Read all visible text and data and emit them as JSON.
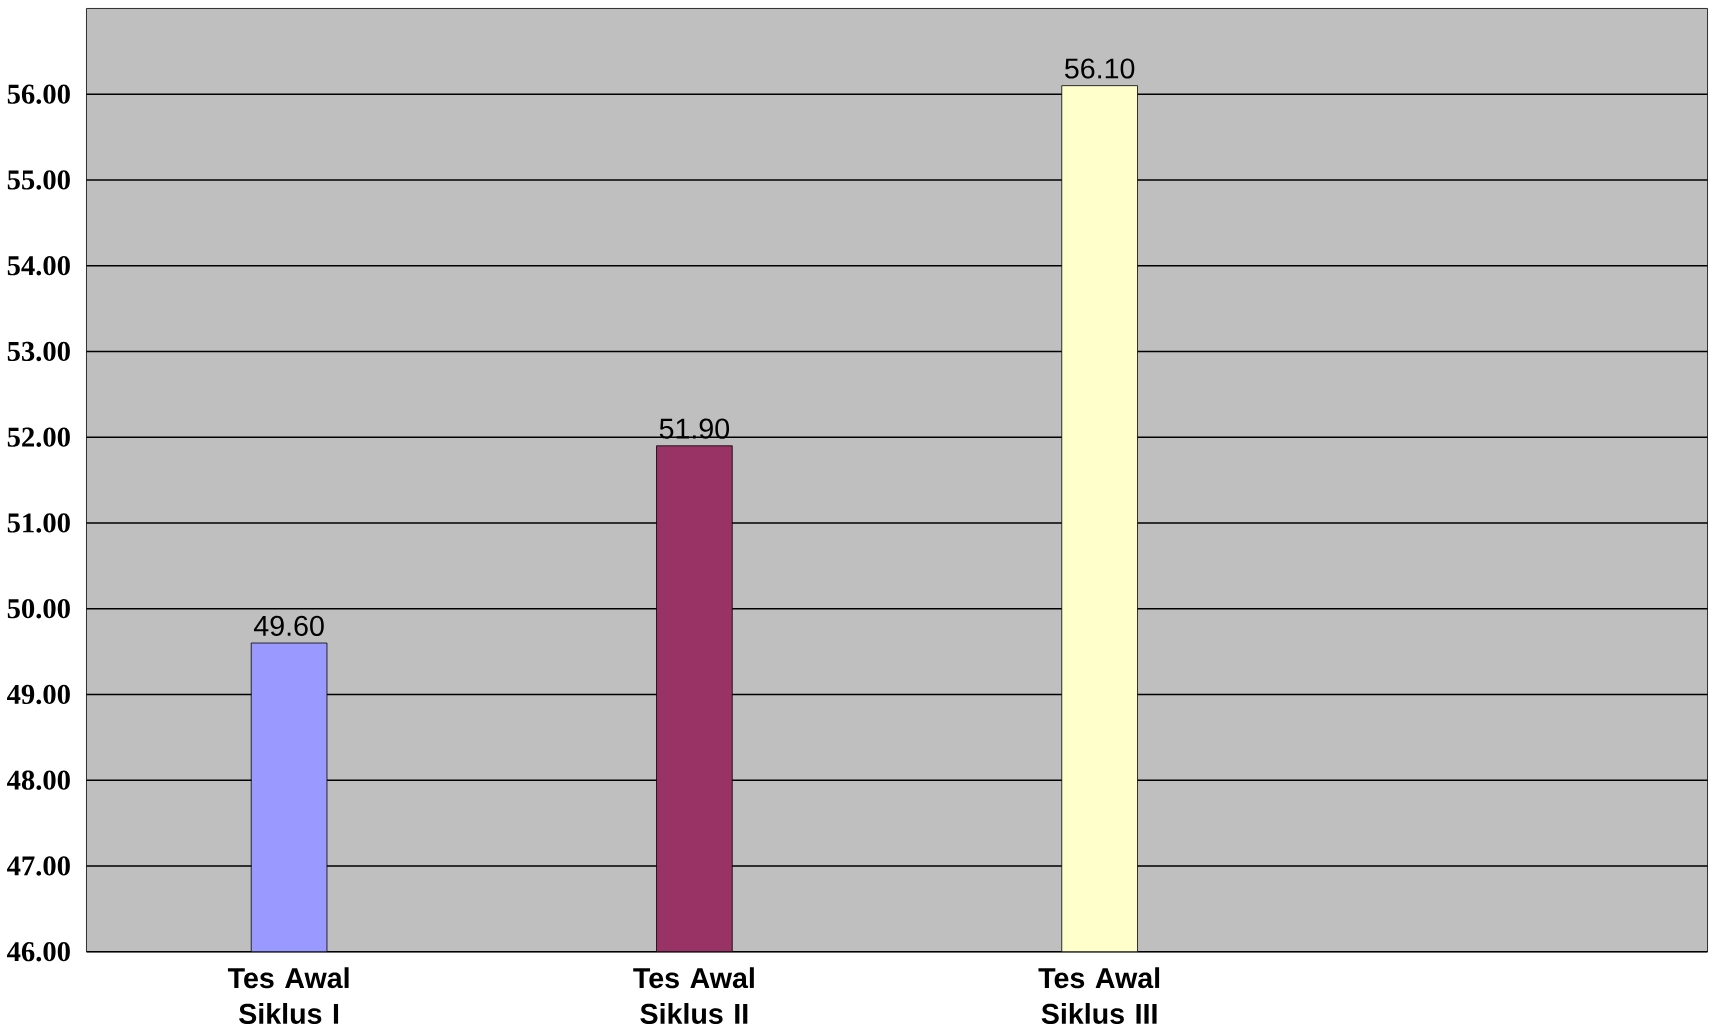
{
  "chart_data": {
    "type": "bar",
    "categories": [
      "Tes Awal Siklus I",
      "Tes Awal Siklus II",
      "Tes Awal Siklus III",
      null
    ],
    "values": [
      49.6,
      51.9,
      56.1,
      null
    ],
    "value_labels": [
      "49.60",
      "51.90",
      "56.10",
      null
    ],
    "colors": [
      "#9999ff",
      "#993366",
      "#ffffcc",
      "#000000"
    ],
    "ylim": [
      46,
      57
    ],
    "yticks": [
      {
        "value": 46,
        "label": "46.00"
      },
      {
        "value": 47,
        "label": "47.00"
      },
      {
        "value": 48,
        "label": "48.00"
      },
      {
        "value": 49,
        "label": "49.00"
      },
      {
        "value": 50,
        "label": "50.00"
      },
      {
        "value": 51,
        "label": "51.00"
      },
      {
        "value": 52,
        "label": "52.00"
      },
      {
        "value": 53,
        "label": "53.00"
      },
      {
        "value": 54,
        "label": "54.00"
      },
      {
        "value": 55,
        "label": "55.00"
      },
      {
        "value": 56,
        "label": "56.00"
      }
    ],
    "grid": "y"
  }
}
